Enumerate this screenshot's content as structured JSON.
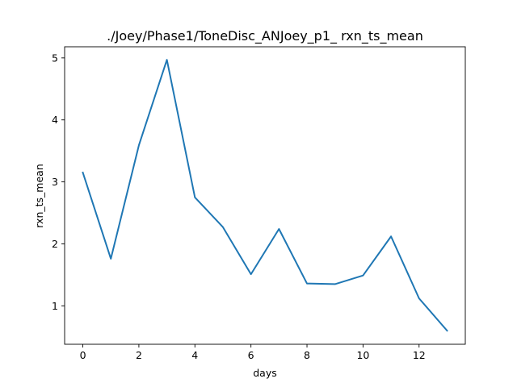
{
  "chart_data": {
    "type": "line",
    "title": "./Joey/Phase1/ToneDisc_ANJoey_p1_ rxn_ts_mean",
    "xlabel": "days",
    "ylabel": "rxn_ts_mean",
    "xlim": [
      -0.65,
      13.65
    ],
    "ylim": [
      0.38,
      5.18
    ],
    "xticks": [
      0,
      2,
      4,
      6,
      8,
      10,
      12
    ],
    "yticks": [
      1,
      2,
      3,
      4,
      5
    ],
    "grid": false,
    "series": [
      {
        "color": "#1f77b4",
        "x": [
          0,
          1,
          2,
          3,
          4,
          5,
          6,
          7,
          8,
          9,
          10,
          11,
          12,
          13
        ],
        "y": [
          3.15,
          1.76,
          3.59,
          4.97,
          2.75,
          2.27,
          1.51,
          2.24,
          1.36,
          1.35,
          1.49,
          2.12,
          1.12,
          0.6
        ]
      }
    ]
  }
}
